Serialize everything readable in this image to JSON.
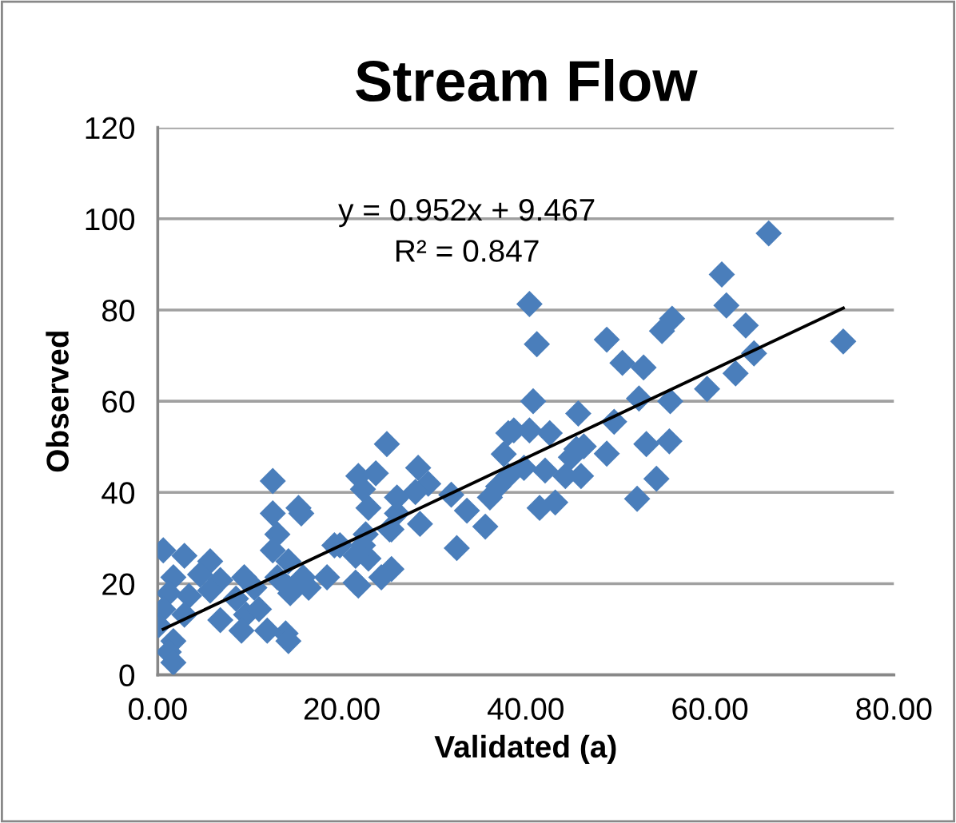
{
  "chart_data": {
    "type": "scatter",
    "title": "Stream Flow",
    "xlabel": "Validated (a)",
    "ylabel": "Observed",
    "xlim": [
      0,
      80
    ],
    "xticks": [
      {
        "value": 0,
        "label": "0.00"
      },
      {
        "value": 20,
        "label": "20.00"
      },
      {
        "value": 40,
        "label": "40.00"
      },
      {
        "value": 60,
        "label": "60.00"
      },
      {
        "value": 80,
        "label": "80.00"
      }
    ],
    "ylim": [
      0,
      120
    ],
    "yticks": [
      0,
      20,
      40,
      60,
      80,
      100,
      120
    ],
    "grid": "y",
    "legend": false,
    "annotations": [
      "y = 0.952x + 9.467",
      "R² = 0.847"
    ],
    "series": [
      {
        "marker": "diamond",
        "color": "#4a7ebb",
        "x": [
          66.4,
          74.5,
          61.3,
          61.8,
          63.9,
          64.8,
          62.8,
          59.7,
          55.9,
          54.8,
          48.8,
          50.5,
          52.8,
          52.3,
          55.7,
          40.4,
          41.2,
          40.8,
          45.7,
          49.6,
          53.1,
          55.6,
          54.2,
          52.1,
          48.8,
          38.7,
          40.4,
          42.6,
          44.9,
          46.3,
          39.8,
          42.1,
          44.3,
          46.0,
          41.5,
          43.2,
          38.1,
          37.6,
          24.9,
          38.1,
          21.8,
          23.7,
          22.3,
          22.9,
          28.3,
          29.4,
          28.0,
          31.9,
          33.6,
          35.6,
          32.5,
          28.5,
          26.0,
          25.2,
          15.6,
          19.8,
          22.3,
          22.9,
          25.4,
          21.8,
          18.4,
          14.4,
          14.2,
          13.9,
          37.0,
          36.1,
          45.5,
          12.5,
          15.3,
          12.5,
          13.0,
          12.5,
          0.6,
          2.9,
          5.7,
          1.7,
          4.6,
          6.8,
          9.4,
          1.2,
          3.4,
          5.7,
          8.5,
          10.5,
          0.6,
          2.9,
          6.8,
          9.6,
          11.0,
          9.1,
          11.9,
          14.2,
          0.1,
          1.7,
          1.2,
          1.7,
          13.0,
          15.8,
          14.2,
          16.4,
          19.2,
          21.5,
          22.6,
          25.4,
          26.0,
          21.5,
          24.3
        ],
        "values": [
          96.8,
          73.1,
          87.8,
          81.0,
          76.6,
          70.5,
          66.1,
          62.7,
          78.1,
          75.4,
          73.5,
          68.4,
          67.4,
          60.6,
          60.0,
          81.3,
          72.5,
          60.0,
          57.3,
          55.5,
          50.6,
          51.2,
          43.0,
          38.6,
          48.5,
          53.6,
          53.6,
          53.0,
          47.7,
          50.1,
          45.4,
          44.8,
          43.6,
          43.6,
          36.6,
          37.8,
          43.6,
          48.4,
          50.6,
          53.0,
          43.6,
          44.2,
          40.7,
          36.6,
          45.4,
          41.9,
          40.1,
          39.5,
          36.0,
          32.5,
          27.8,
          33.1,
          35.4,
          31.9,
          35.4,
          28.4,
          28.4,
          25.5,
          23.2,
          19.6,
          21.4,
          17.9,
          24.9,
          9.1,
          41.3,
          38.9,
          49.5,
          42.5,
          36.6,
          35.4,
          30.8,
          27.3,
          27.3,
          26.1,
          24.9,
          21.4,
          22.0,
          20.8,
          21.4,
          17.9,
          17.3,
          18.5,
          16.7,
          19.1,
          14.4,
          13.2,
          12.0,
          13.2,
          14.4,
          9.7,
          9.7,
          7.4,
          10.9,
          7.4,
          5.0,
          2.7,
          21.4,
          21.4,
          19.1,
          19.1,
          28.4,
          26.1,
          30.8,
          31.9,
          38.9,
          20.2,
          21.4
        ]
      },
      {
        "type": "line",
        "color": "#000000",
        "line_style": "solid",
        "marker": "none",
        "x": [
          0.6,
          74.5
        ],
        "values": [
          10.0,
          80.4
        ]
      }
    ]
  }
}
